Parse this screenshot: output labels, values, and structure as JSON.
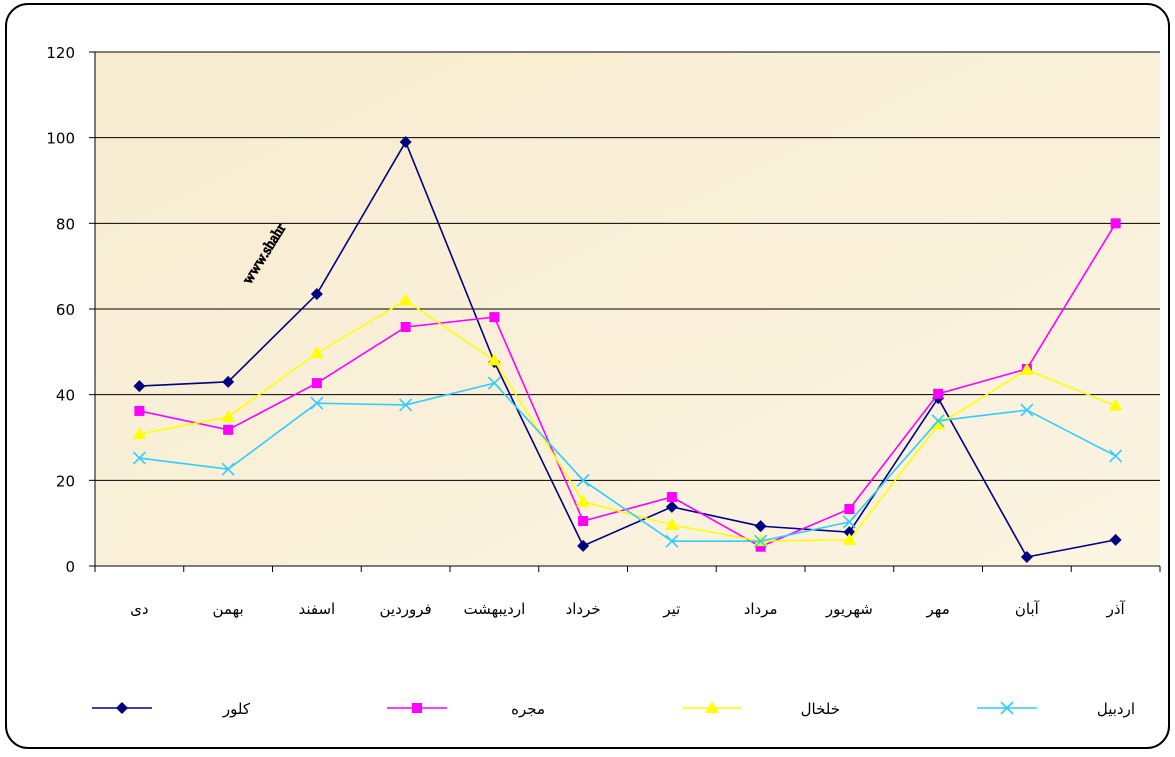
{
  "chart_data": {
    "type": "line",
    "watermark": "www.shahr",
    "categories": [
      "دی",
      "بهمن",
      "اسفند",
      "فروردین",
      "اردیبهشت",
      "خرداد",
      "تیر",
      "مرداد",
      "شهریور",
      "مهر",
      "آبان",
      "آذر"
    ],
    "series": [
      {
        "name": "کلور",
        "color": "#000080",
        "marker": "diamond",
        "values": [
          42,
          43,
          63.5,
          99,
          47.6,
          4.7,
          13.8,
          9.3,
          7.9,
          39.2,
          2.1,
          6.1
        ]
      },
      {
        "name": "مجره",
        "color": "#ff00ff",
        "marker": "square",
        "values": [
          36.2,
          31.8,
          42.7,
          55.8,
          58.1,
          10.5,
          16.1,
          4.5,
          13.3,
          40.2,
          46,
          80
        ]
      },
      {
        "name": "خلخال",
        "color": "#ffff00",
        "marker": "triangle",
        "values": [
          30.8,
          34.8,
          49.7,
          62,
          48,
          15,
          9.6,
          5.8,
          6.1,
          33,
          45.8,
          37.4
        ]
      },
      {
        "name": "اردبیل",
        "color": "#33ccff",
        "marker": "x",
        "values": [
          25.2,
          22.6,
          38,
          37.6,
          42.7,
          20,
          5.8,
          5.8,
          10.3,
          33.9,
          36.4,
          25.7
        ]
      }
    ],
    "ylim": [
      0,
      120
    ],
    "yticks": [
      0,
      20,
      40,
      60,
      80,
      100,
      120
    ],
    "grid": true,
    "legend": "bottom"
  }
}
